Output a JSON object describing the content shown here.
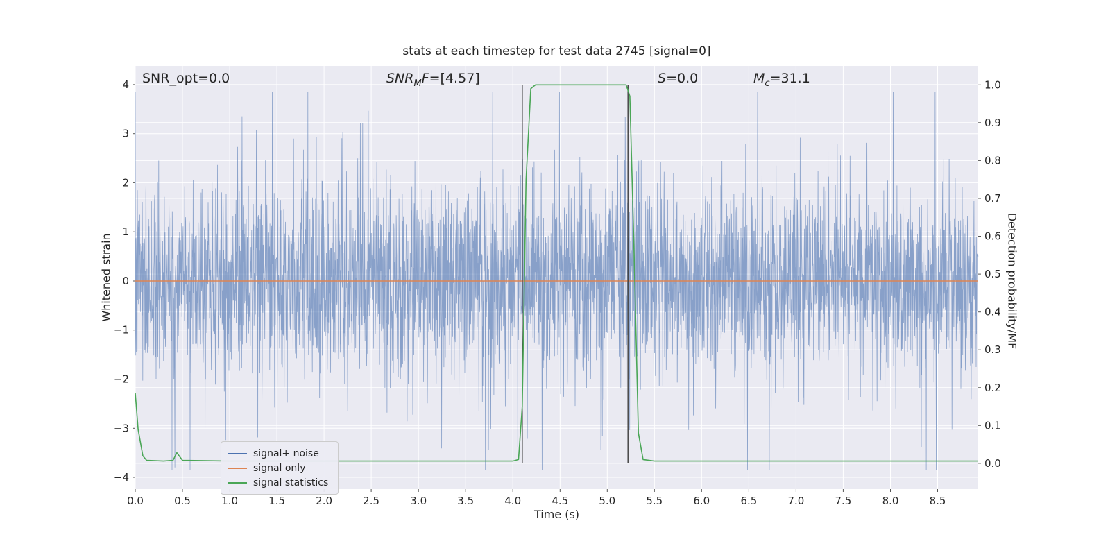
{
  "figure": {
    "title": "stats at each timestep for test data 2745 [signal=0]",
    "xlabel": "Time (s)",
    "ylabel_left": "Whitened strain",
    "ylabel_right": "Detection probability/MF"
  },
  "annotations": {
    "snr_opt": {
      "text": "SNR_opt=0.0"
    },
    "snr_mf": {
      "base": "SNR",
      "sub": "M",
      "mid": "F",
      "rest": "=[4.57]"
    },
    "s": {
      "base": "S",
      "rest": "=0.0"
    },
    "mc": {
      "base": "M",
      "sub": "c",
      "rest": "=31.1"
    }
  },
  "legend": {
    "items": [
      {
        "label": "signal+ noise",
        "color": "#4c72b0"
      },
      {
        "label": "signal only",
        "color": "#dd8452"
      },
      {
        "label": "signal statistics",
        "color": "#4aa656"
      }
    ]
  },
  "chart_data": {
    "type": "line",
    "title": "stats at each timestep for test data 2745 [signal=0]",
    "xlabel": "Time (s)",
    "ylabel_left": "Whitened strain",
    "ylabel_right": "Detection probability/MF",
    "xlim": [
      0,
      8.93
    ],
    "ylim_left": [
      -4.24,
      4.38
    ],
    "ylim_right": [
      -0.068,
      1.05
    ],
    "background": "#eaeaf2",
    "grid_color": "#ffffff",
    "tick_color": "#555555",
    "label_color": "#262626",
    "grid": true,
    "legend_position": "lower left",
    "xticks": [
      0,
      0.5,
      1,
      1.5,
      2,
      2.5,
      3,
      3.5,
      4,
      4.5,
      5,
      5.5,
      6,
      6.5,
      7,
      7.5,
      8,
      8.5
    ],
    "yticks_left": [
      -4,
      -3,
      -2,
      -1,
      0,
      1,
      2,
      3,
      4
    ],
    "yticks_right": [
      0,
      0.1,
      0.2,
      0.3,
      0.4,
      0.5,
      0.6,
      0.7,
      0.8,
      0.9,
      1.0
    ],
    "series": [
      {
        "name": "signal+ noise",
        "axis": "left",
        "kind": "random-noise",
        "color": "#4c72b0",
        "opacity": 0.62,
        "n": 3600,
        "seed": 7,
        "sigma_core": 0.95,
        "sigma_tail": 1.9,
        "tail_prob": 0.05,
        "clip": 3.85
      },
      {
        "name": "signal only",
        "axis": "left",
        "kind": "line",
        "color": "#dd8452",
        "points": [
          [
            0,
            0
          ],
          [
            8.93,
            0
          ]
        ]
      },
      {
        "name": "signal statistics",
        "axis": "right",
        "kind": "line",
        "color": "#4aa656",
        "points": [
          [
            0,
            0.185
          ],
          [
            0.03,
            0.09
          ],
          [
            0.08,
            0.02
          ],
          [
            0.12,
            0.008
          ],
          [
            0.3,
            0.006
          ],
          [
            0.4,
            0.008
          ],
          [
            0.44,
            0.028
          ],
          [
            0.5,
            0.008
          ],
          [
            1,
            0.006
          ],
          [
            1.5,
            0.006
          ],
          [
            2,
            0.006
          ],
          [
            2.5,
            0.006
          ],
          [
            3,
            0.006
          ],
          [
            3.5,
            0.006
          ],
          [
            4,
            0.006
          ],
          [
            4.06,
            0.01
          ],
          [
            4.1,
            0.15
          ],
          [
            4.14,
            0.75
          ],
          [
            4.19,
            0.99
          ],
          [
            4.24,
            1.0
          ],
          [
            5.2,
            1.0
          ],
          [
            5.24,
            0.97
          ],
          [
            5.28,
            0.6
          ],
          [
            5.33,
            0.08
          ],
          [
            5.38,
            0.01
          ],
          [
            5.5,
            0.006
          ],
          [
            6,
            0.006
          ],
          [
            6.5,
            0.006
          ],
          [
            7,
            0.006
          ],
          [
            7.5,
            0.006
          ],
          [
            8,
            0.006
          ],
          [
            8.5,
            0.006
          ],
          [
            8.93,
            0.006
          ]
        ]
      }
    ],
    "vlines": [
      {
        "x": 4.1,
        "y0": 0.0,
        "y1": 1.0,
        "color": "#3b3b3b"
      },
      {
        "x": 5.22,
        "y0": 0.0,
        "y1": 1.0,
        "color": "#3b3b3b"
      }
    ]
  }
}
